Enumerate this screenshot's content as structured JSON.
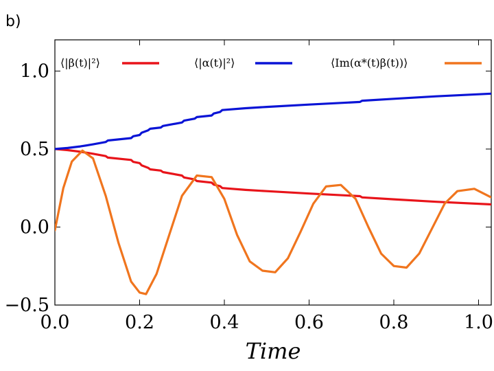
{
  "panel_label": "b)",
  "chart_data": {
    "type": "line",
    "title": "",
    "xlabel": "Time",
    "ylabel": "",
    "xlim": [
      0.0,
      1.03
    ],
    "ylim": [
      -0.5,
      1.2
    ],
    "x_ticks": [
      0.0,
      0.2,
      0.4,
      0.6,
      0.8,
      1.0
    ],
    "x_tick_labels": [
      "0.0",
      "0.2",
      "0.4",
      "0.6",
      "0.8",
      "1.0"
    ],
    "y_ticks": [
      -0.5,
      0.0,
      0.5,
      1.0
    ],
    "y_tick_labels": [
      "−0.5",
      "0.0",
      "0.5",
      "1.0"
    ],
    "grid": false,
    "legend_position": "top",
    "series": [
      {
        "name": "⟨|β(t)|²⟩",
        "color": "#e8141a",
        "x": [
          0.0,
          0.03,
          0.06,
          0.09,
          0.12,
          0.125,
          0.18,
          0.185,
          0.2,
          0.205,
          0.22,
          0.225,
          0.25,
          0.255,
          0.3,
          0.305,
          0.33,
          0.335,
          0.37,
          0.375,
          0.39,
          0.395,
          0.45,
          0.5,
          0.6,
          0.72,
          0.725,
          0.8,
          0.9,
          1.03
        ],
        "y": [
          0.5,
          0.493,
          0.483,
          0.47,
          0.455,
          0.445,
          0.43,
          0.418,
          0.41,
          0.395,
          0.38,
          0.37,
          0.362,
          0.352,
          0.33,
          0.318,
          0.305,
          0.295,
          0.285,
          0.272,
          0.262,
          0.25,
          0.238,
          0.23,
          0.215,
          0.198,
          0.19,
          0.178,
          0.162,
          0.145
        ]
      },
      {
        "name": "⟨|α(t)|²⟩",
        "color": "#0a14d6",
        "x": [
          0.0,
          0.03,
          0.06,
          0.09,
          0.12,
          0.125,
          0.18,
          0.185,
          0.2,
          0.205,
          0.22,
          0.225,
          0.25,
          0.255,
          0.3,
          0.305,
          0.33,
          0.335,
          0.37,
          0.375,
          0.39,
          0.395,
          0.45,
          0.5,
          0.6,
          0.72,
          0.725,
          0.8,
          0.9,
          1.03
        ],
        "y": [
          0.5,
          0.507,
          0.517,
          0.53,
          0.545,
          0.555,
          0.57,
          0.582,
          0.59,
          0.605,
          0.62,
          0.63,
          0.638,
          0.648,
          0.67,
          0.682,
          0.695,
          0.705,
          0.715,
          0.728,
          0.738,
          0.75,
          0.762,
          0.77,
          0.785,
          0.802,
          0.81,
          0.822,
          0.838,
          0.855
        ]
      },
      {
        "name": "⟨Im(α*(t)β(t))⟩",
        "color": "#f0751e",
        "x": [
          0.0,
          0.02,
          0.04,
          0.065,
          0.09,
          0.12,
          0.15,
          0.18,
          0.2,
          0.215,
          0.24,
          0.27,
          0.3,
          0.335,
          0.37,
          0.4,
          0.43,
          0.46,
          0.49,
          0.52,
          0.55,
          0.58,
          0.61,
          0.64,
          0.675,
          0.71,
          0.74,
          0.77,
          0.8,
          0.83,
          0.86,
          0.89,
          0.92,
          0.95,
          0.99,
          1.03
        ],
        "y": [
          -0.02,
          0.25,
          0.42,
          0.49,
          0.44,
          0.2,
          -0.1,
          -0.35,
          -0.42,
          -0.43,
          -0.3,
          -0.05,
          0.2,
          0.33,
          0.32,
          0.18,
          -0.05,
          -0.22,
          -0.28,
          -0.29,
          -0.2,
          -0.03,
          0.15,
          0.26,
          0.27,
          0.18,
          0.0,
          -0.17,
          -0.25,
          -0.26,
          -0.17,
          -0.01,
          0.15,
          0.23,
          0.245,
          0.19
        ]
      }
    ]
  }
}
